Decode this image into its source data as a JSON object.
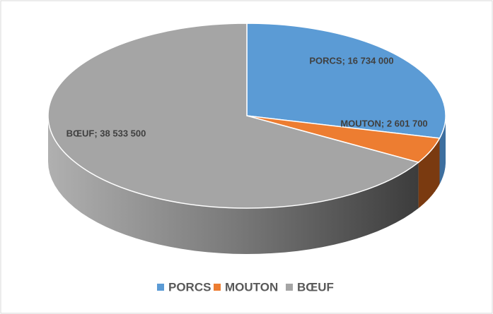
{
  "chart_data": {
    "type": "pie",
    "categories": [
      "PORCS",
      "MOUTON",
      "BŒUF"
    ],
    "values": [
      16734000,
      2601700,
      38533500
    ],
    "value_labels": [
      "PORCS; 16 734 000",
      "MOUTON; 2 601 700",
      "BŒUF; 38 533 500"
    ],
    "colors": [
      "#5b9bd5",
      "#ed7d31",
      "#a5a5a5"
    ],
    "legend": "bottom"
  }
}
